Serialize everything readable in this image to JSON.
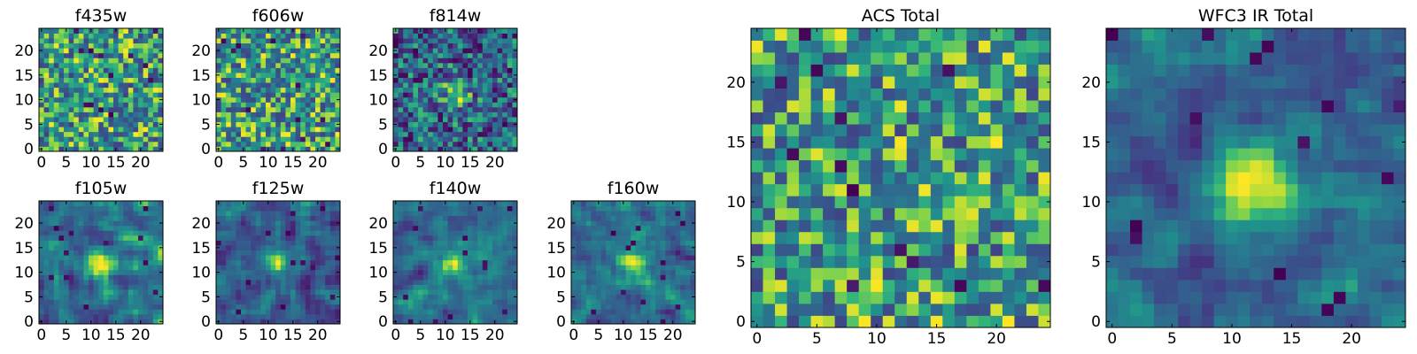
{
  "colormap": "viridis",
  "chart_data": [
    {
      "type": "heatmap",
      "title": "f435w",
      "grid_size": 25,
      "xticks": [
        0,
        5,
        10,
        15,
        20
      ],
      "yticks": [
        0,
        5,
        10,
        15,
        20
      ],
      "xlim": [
        -0.5,
        24.5
      ],
      "ylim": [
        -0.5,
        24.5
      ],
      "pattern": "noise",
      "peak": [
        12,
        12
      ]
    },
    {
      "type": "heatmap",
      "title": "f606w",
      "grid_size": 25,
      "xticks": [
        0,
        5,
        10,
        15,
        20
      ],
      "yticks": [
        0,
        5,
        10,
        15,
        20
      ],
      "xlim": [
        -0.5,
        24.5
      ],
      "ylim": [
        -0.5,
        24.5
      ],
      "pattern": "noise",
      "peak": [
        12,
        12
      ]
    },
    {
      "type": "heatmap",
      "title": "f814w",
      "grid_size": 25,
      "xticks": [
        0,
        5,
        10,
        15,
        20
      ],
      "yticks": [
        0,
        5,
        10,
        15,
        20
      ],
      "xlim": [
        -0.5,
        24.5
      ],
      "ylim": [
        -0.5,
        24.5
      ],
      "pattern": "noise-peak",
      "peak": [
        12,
        12
      ]
    },
    {
      "type": "heatmap",
      "title": "f105w",
      "grid_size": 25,
      "xticks": [
        0,
        5,
        10,
        15,
        20
      ],
      "yticks": [
        0,
        5,
        10,
        15,
        20
      ],
      "xlim": [
        -0.5,
        24.5
      ],
      "ylim": [
        -0.5,
        24.5
      ],
      "pattern": "smooth-peak",
      "peak": [
        12,
        12
      ]
    },
    {
      "type": "heatmap",
      "title": "f125w",
      "grid_size": 25,
      "xticks": [
        0,
        5,
        10,
        15,
        20
      ],
      "yticks": [
        0,
        5,
        10,
        15,
        20
      ],
      "xlim": [
        -0.5,
        24.5
      ],
      "ylim": [
        -0.5,
        24.5
      ],
      "pattern": "smooth-peak",
      "peak": [
        12,
        12
      ]
    },
    {
      "type": "heatmap",
      "title": "f140w",
      "grid_size": 25,
      "xticks": [
        0,
        5,
        10,
        15,
        20
      ],
      "yticks": [
        0,
        5,
        10,
        15,
        20
      ],
      "xlim": [
        -0.5,
        24.5
      ],
      "ylim": [
        -0.5,
        24.5
      ],
      "pattern": "smooth-peak",
      "peak": [
        12,
        12
      ]
    },
    {
      "type": "heatmap",
      "title": "f160w",
      "grid_size": 25,
      "xticks": [
        0,
        5,
        10,
        15,
        20
      ],
      "yticks": [
        0,
        5,
        10,
        15,
        20
      ],
      "xlim": [
        -0.5,
        24.5
      ],
      "ylim": [
        -0.5,
        24.5
      ],
      "pattern": "smooth-peak",
      "peak": [
        12,
        12
      ]
    },
    {
      "type": "heatmap",
      "title": "ACS Total",
      "grid_size": 25,
      "xticks": [
        0,
        5,
        10,
        15,
        20
      ],
      "yticks": [
        0,
        5,
        10,
        15,
        20
      ],
      "xlim": [
        -0.5,
        24.5
      ],
      "ylim": [
        -0.5,
        24.5
      ],
      "pattern": "noise-bright",
      "peak": [
        12,
        12
      ]
    },
    {
      "type": "heatmap",
      "title": "WFC3 IR Total",
      "grid_size": 25,
      "xticks": [
        0,
        5,
        10,
        15,
        20
      ],
      "yticks": [
        0,
        5,
        10,
        15,
        20
      ],
      "xlim": [
        -0.5,
        24.5
      ],
      "ylim": [
        -0.5,
        24.5
      ],
      "pattern": "smooth-peak-strong",
      "peak": [
        12,
        12
      ]
    }
  ]
}
